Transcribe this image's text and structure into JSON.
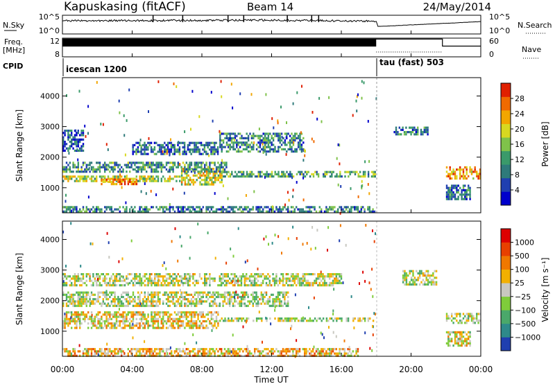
{
  "header": {
    "station": "Kapuskasing (fitACF)",
    "beam": "Beam 14",
    "date": "24/May/2014"
  },
  "status_panels": {
    "nsky_label": "N.Sky",
    "nsky_ticks": [
      "10^5",
      "10^0"
    ],
    "nsearch_label": "N.Search",
    "nsearch_ticks": [
      "10^5",
      "10^0"
    ],
    "freq_label_line1": "Freq.",
    "freq_label_line2": "[MHz]",
    "freq_ticks": [
      "12",
      "8"
    ],
    "nave_label": "Nave",
    "nave_ticks": [
      "60",
      "0"
    ],
    "cpid_label": "CPID",
    "cpid_modes": [
      {
        "name": "icescan 1200",
        "start_hour": 0
      },
      {
        "name": "tau (fast) 503",
        "start_hour": 18
      }
    ]
  },
  "x_axis": {
    "label": "Time UT",
    "tick_labels": [
      "00:00",
      "04:00",
      "08:00",
      "12:00",
      "16:00",
      "20:00",
      "00:00"
    ],
    "range_hours": [
      0,
      24
    ]
  },
  "y_axis": {
    "label": "Slant Range [km]",
    "tick_labels": [
      "1000",
      "2000",
      "3000",
      "4000"
    ],
    "range_km": [
      180,
      4600
    ]
  },
  "power_colorbar": {
    "label": "Power [dB]",
    "tick_labels": [
      "28",
      "24",
      "20",
      "16",
      "12",
      "8",
      "4"
    ],
    "colors": [
      "#0000cc",
      "#1f3fb0",
      "#2e7a7a",
      "#3a9a6a",
      "#7fc24a",
      "#d8d820",
      "#f2a600",
      "#f06a00",
      "#e02000"
    ]
  },
  "velocity_colorbar": {
    "label": "Velocity [m s⁻¹]",
    "tick_labels": [
      "1000",
      "500",
      "100",
      "25",
      "−25",
      "−100",
      "−500",
      "−1000"
    ],
    "colors": [
      "#1f3fb0",
      "#2e8a8a",
      "#4aa86a",
      "#7fcc3a",
      "#c8c8c0",
      "#f2b000",
      "#f07800",
      "#e84000",
      "#dd0000"
    ]
  },
  "chart_data": {
    "type": "heatmap",
    "panels": [
      {
        "name": "power",
        "quantity": "Power [dB]",
        "bands": [
          {
            "t0": 0.0,
            "t1": 6.8,
            "r0": 1150,
            "r1": 1400,
            "level": 0.55
          },
          {
            "t0": 2.2,
            "t1": 4.3,
            "r0": 1050,
            "r1": 1300,
            "level": 0.8
          },
          {
            "t0": 6.8,
            "t1": 9.2,
            "r0": 1100,
            "r1": 1650,
            "level": 0.6
          },
          {
            "t0": 9.2,
            "t1": 18.0,
            "r0": 1350,
            "r1": 1550,
            "level": 0.4
          },
          {
            "t0": 0.0,
            "t1": 9.5,
            "r0": 1500,
            "r1": 1850,
            "level": 0.35
          },
          {
            "t0": 4.0,
            "t1": 9.0,
            "r0": 2100,
            "r1": 2500,
            "level": 0.25
          },
          {
            "t0": 9.0,
            "t1": 14.0,
            "r0": 2150,
            "r1": 2800,
            "level": 0.3
          },
          {
            "t0": 0.0,
            "t1": 1.2,
            "r0": 2200,
            "r1": 2900,
            "level": 0.2
          },
          {
            "t0": 0.0,
            "t1": 18.0,
            "r0": 180,
            "r1": 400,
            "level": 0.3
          },
          {
            "t0": 19.0,
            "t1": 21.0,
            "r0": 2700,
            "r1": 3000,
            "level": 0.3
          },
          {
            "t0": 22.0,
            "t1": 24.0,
            "r0": 1250,
            "r1": 1700,
            "level": 0.75
          },
          {
            "t0": 22.0,
            "t1": 23.4,
            "r0": 600,
            "r1": 1100,
            "level": 0.25
          }
        ]
      },
      {
        "name": "velocity",
        "quantity": "Velocity [m s⁻¹]",
        "bands": [
          {
            "t0": 0.0,
            "t1": 9.0,
            "r0": 1100,
            "r1": 1650,
            "level": 0.55
          },
          {
            "t0": 9.0,
            "t1": 18.0,
            "r0": 1300,
            "r1": 1450,
            "level": 0.45
          },
          {
            "t0": 0.0,
            "t1": 13.0,
            "r0": 1800,
            "r1": 2300,
            "level": 0.45
          },
          {
            "t0": 0.0,
            "t1": 16.0,
            "r0": 2500,
            "r1": 2900,
            "level": 0.45
          },
          {
            "t0": 0.0,
            "t1": 17.0,
            "r0": 180,
            "r1": 450,
            "level": 0.6
          },
          {
            "t0": 19.5,
            "t1": 21.5,
            "r0": 2500,
            "r1": 3000,
            "level": 0.45
          },
          {
            "t0": 22.0,
            "t1": 24.0,
            "r0": 1250,
            "r1": 1600,
            "level": 0.45
          },
          {
            "t0": 22.0,
            "t1": 23.4,
            "r0": 500,
            "r1": 1000,
            "level": 0.5
          }
        ]
      }
    ],
    "xlabel": "Time UT",
    "ylabel": "Slant Range [km]",
    "xlim": [
      0,
      24
    ],
    "ylim": [
      180,
      4600
    ],
    "frequency_series": {
      "x": [
        0,
        18,
        18,
        21.8,
        21.8,
        24
      ],
      "values": [
        11.7,
        11.7,
        11.8,
        11.8,
        10.3,
        10.3
      ]
    },
    "nsky_series": {
      "x": [
        0,
        6,
        12,
        18,
        18.1,
        24
      ],
      "values": [
        3.5,
        3.6,
        3.7,
        3.4,
        2.0,
        3.3
      ]
    }
  }
}
